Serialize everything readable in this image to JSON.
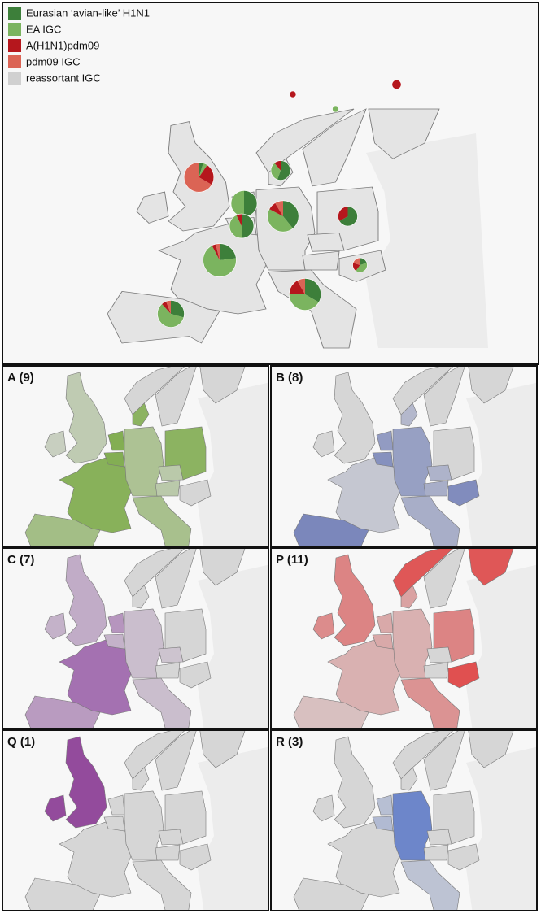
{
  "legend": [
    {
      "name": "Eurasian ‘avian-like’ H1N1",
      "color": "#3d7f3a"
    },
    {
      "name": "EA IGC",
      "color": "#7bb45f"
    },
    {
      "name": "A(H1N1)pdm09",
      "color": "#b5171d"
    },
    {
      "name": "pdm09 IGC",
      "color": "#db6455"
    },
    {
      "name": "reassortant IGC",
      "color": "#d0d0d0"
    }
  ],
  "pies": [
    {
      "values": [
        0,
        0,
        1,
        0,
        0
      ]
    },
    {
      "values": [
        0,
        0,
        2,
        0,
        0
      ]
    },
    {
      "values": [
        0,
        1,
        0,
        0,
        0
      ]
    },
    {
      "values": [
        5,
        3,
        1,
        0,
        0
      ]
    },
    {
      "values": [
        1,
        1,
        5,
        14,
        0
      ]
    },
    {
      "values": [
        8,
        8,
        0,
        0,
        0
      ]
    },
    {
      "values": [
        7,
        6,
        1,
        0,
        0
      ]
    },
    {
      "values": [
        9,
        10,
        2,
        2,
        0
      ]
    },
    {
      "values": [
        6,
        0,
        3,
        0,
        0
      ]
    },
    {
      "values": [
        1,
        2,
        1,
        1,
        0
      ]
    },
    {
      "values": [
        6,
        18,
        1,
        1,
        0
      ]
    },
    {
      "values": [
        8,
        10,
        4,
        2,
        0
      ]
    },
    {
      "values": [
        5,
        10,
        1,
        1,
        0
      ]
    }
  ],
  "panels": [
    {
      "label": "A (9)"
    },
    {
      "label": "B (8)"
    },
    {
      "label": "C (7)"
    },
    {
      "label": "P (11)"
    },
    {
      "label": "Q (1)"
    },
    {
      "label": "R (3)"
    }
  ]
}
